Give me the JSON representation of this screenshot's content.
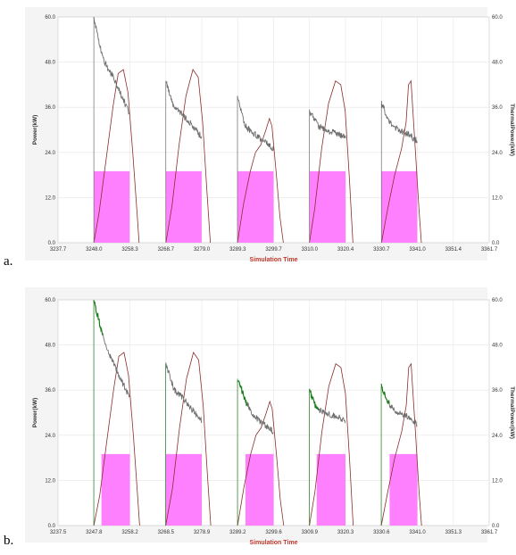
{
  "chart_data": [
    {
      "type": "line",
      "panel_label": "a.",
      "xlabel": "Simulation Time",
      "ylabel": "Power(kW)",
      "ylabel_right": "ThermalPower(kW)",
      "xlim": [
        3237.7,
        3361.7
      ],
      "ylim": [
        0,
        60
      ],
      "x_ticks": [
        "3237.7",
        "3248.0",
        "3258.3",
        "3268.7",
        "3279.0",
        "3289.3",
        "3299.7",
        "3310.0",
        "3320.4",
        "3330.7",
        "3341.0",
        "3351.4",
        "3361.7"
      ],
      "y_ticks": [
        "0.0",
        "12.0",
        "24.0",
        "36.0",
        "48.0",
        "60.0"
      ],
      "grid": true,
      "colors": {
        "electric_power": "#6e6e6e",
        "thermal_power": "#8b2e2e",
        "pulse": "#ff80ff",
        "grid": "#e6e6e6"
      },
      "pulses": [
        {
          "start": 3248.0,
          "end": 3258.3,
          "value": 19
        },
        {
          "start": 3268.7,
          "end": 3279.0,
          "value": 19
        },
        {
          "start": 3289.3,
          "end": 3299.7,
          "value": 19
        },
        {
          "start": 3310.0,
          "end": 3320.4,
          "value": 19
        },
        {
          "start": 3330.7,
          "end": 3341.0,
          "value": 19
        }
      ],
      "electric_power": [
        {
          "x": [
            3248.0,
            3250.5,
            3253.0,
            3255.5,
            3258.3
          ],
          "y": [
            60,
            49,
            45,
            40,
            34
          ]
        },
        {
          "x": [
            3268.7,
            3271.0,
            3273.5,
            3276.5,
            3279.0
          ],
          "y": [
            43,
            36,
            34,
            31,
            28
          ]
        },
        {
          "x": [
            3289.3,
            3291.5,
            3294.0,
            3296.8,
            3299.7
          ],
          "y": [
            39,
            31,
            29,
            27,
            25
          ]
        },
        {
          "x": [
            3310.0,
            3312.5,
            3315.0,
            3317.7,
            3320.4
          ],
          "y": [
            35,
            31,
            30,
            29,
            28
          ]
        },
        {
          "x": [
            3330.7,
            3333.0,
            3335.5,
            3338.3,
            3341.0
          ],
          "y": [
            37,
            32,
            30,
            29,
            27
          ]
        }
      ],
      "thermal_power": [
        {
          "x": [
            3248.0,
            3249.5,
            3251.5,
            3253.5,
            3255.0,
            3256.5,
            3257.8,
            3259.2,
            3260.5,
            3261.0
          ],
          "y": [
            0,
            8,
            22,
            36,
            45,
            46,
            40,
            24,
            7,
            0
          ]
        },
        {
          "x": [
            3268.7,
            3270.5,
            3272.5,
            3274.5,
            3276.5,
            3278.0,
            3279.3,
            3280.5,
            3281.5
          ],
          "y": [
            0,
            10,
            26,
            39,
            46,
            44,
            32,
            14,
            0
          ]
        },
        {
          "x": [
            3289.3,
            3291.0,
            3293.0,
            3294.5,
            3296.0,
            3297.5,
            3298.5,
            3299.2,
            3300.5,
            3301.5,
            3302.5
          ],
          "y": [
            0,
            10,
            19,
            24,
            26,
            30,
            33,
            31,
            18,
            7,
            0
          ]
        },
        {
          "x": [
            3310.0,
            3311.5,
            3313.5,
            3315.5,
            3317.5,
            3319.0,
            3320.3,
            3321.5,
            3322.5
          ],
          "y": [
            0,
            9,
            25,
            37,
            43,
            42,
            35,
            17,
            0
          ]
        },
        {
          "x": [
            3330.7,
            3332.5,
            3334.5,
            3336.5,
            3337.8,
            3338.5,
            3339.2,
            3340.5,
            3341.5,
            3342.2
          ],
          "y": [
            0,
            9,
            18,
            25,
            32,
            42,
            43,
            24,
            9,
            0
          ]
        }
      ]
    },
    {
      "type": "line",
      "panel_label": "b.",
      "xlabel": "Simulation Time",
      "ylabel": "Power(kW)",
      "ylabel_right": "ThermalPower(kW)",
      "xlim": [
        3237.5,
        3361.7
      ],
      "ylim": [
        0,
        60
      ],
      "x_ticks": [
        "3237.5",
        "3247.8",
        "3258.2",
        "3268.5",
        "3278.9",
        "3289.2",
        "3299.6",
        "3309.9",
        "3320.3",
        "3330.6",
        "3341.0",
        "3351.3",
        "3361.7"
      ],
      "y_ticks": [
        "0.0",
        "12.0",
        "24.0",
        "36.0",
        "48.0",
        "60.0"
      ],
      "grid": true,
      "colors": {
        "electric_power": "#6e6e6e",
        "electric_power_highlight": "#1a7a1a",
        "thermal_power": "#8b2e2e",
        "pulse": "#ff80ff",
        "grid": "#e6e6e6"
      },
      "pulses": [
        {
          "start": 3250.0,
          "end": 3258.2,
          "value": 19
        },
        {
          "start": 3268.5,
          "end": 3278.9,
          "value": 19
        },
        {
          "start": 3291.5,
          "end": 3299.6,
          "value": 19
        },
        {
          "start": 3312.0,
          "end": 3320.3,
          "value": 19
        },
        {
          "start": 3333.0,
          "end": 3341.0,
          "value": 19
        }
      ],
      "electric_power": [
        {
          "x": [
            3247.8,
            3250.5,
            3253.0,
            3255.5,
            3258.2
          ],
          "y": [
            60,
            50,
            44,
            39,
            34
          ],
          "highlight_end": 3250.5
        },
        {
          "x": [
            3268.5,
            3271.0,
            3273.5,
            3276.0,
            3278.9
          ],
          "y": [
            43,
            36,
            34,
            31,
            28
          ],
          "highlight_end": 3268.5
        },
        {
          "x": [
            3289.2,
            3291.5,
            3294.0,
            3296.8,
            3299.6
          ],
          "y": [
            39,
            33,
            29,
            27,
            25
          ],
          "highlight_end": 3292.0
        },
        {
          "x": [
            3309.9,
            3312.0,
            3314.5,
            3317.5,
            3320.3
          ],
          "y": [
            36,
            31,
            30,
            29,
            28
          ],
          "highlight_end": 3312.5
        },
        {
          "x": [
            3330.6,
            3333.0,
            3335.5,
            3338.3,
            3341.0
          ],
          "y": [
            37,
            32,
            30,
            29,
            27
          ],
          "highlight_end": 3333.0
        }
      ],
      "thermal_power": [
        {
          "x": [
            3247.8,
            3249.5,
            3251.5,
            3253.5,
            3255.0,
            3256.5,
            3257.8,
            3259.2,
            3260.5,
            3261.0
          ],
          "y": [
            0,
            8,
            22,
            36,
            45,
            46,
            40,
            24,
            7,
            0
          ]
        },
        {
          "x": [
            3268.5,
            3270.5,
            3272.5,
            3274.5,
            3276.5,
            3278.0,
            3279.3,
            3280.5,
            3281.5
          ],
          "y": [
            0,
            10,
            26,
            39,
            46,
            44,
            32,
            14,
            0
          ]
        },
        {
          "x": [
            3289.2,
            3291.0,
            3293.0,
            3294.5,
            3296.0,
            3297.5,
            3298.5,
            3299.2,
            3300.5,
            3301.5,
            3302.5
          ],
          "y": [
            0,
            10,
            19,
            24,
            26,
            30,
            33,
            31,
            18,
            7,
            0
          ]
        },
        {
          "x": [
            3309.9,
            3311.5,
            3313.5,
            3315.5,
            3317.5,
            3319.0,
            3320.3,
            3321.5,
            3322.5
          ],
          "y": [
            0,
            9,
            25,
            37,
            43,
            42,
            35,
            17,
            0
          ]
        },
        {
          "x": [
            3330.6,
            3332.5,
            3334.5,
            3336.5,
            3337.8,
            3338.5,
            3339.2,
            3340.5,
            3341.5,
            3342.2
          ],
          "y": [
            0,
            9,
            18,
            25,
            32,
            42,
            43,
            24,
            9,
            0
          ]
        }
      ]
    }
  ]
}
